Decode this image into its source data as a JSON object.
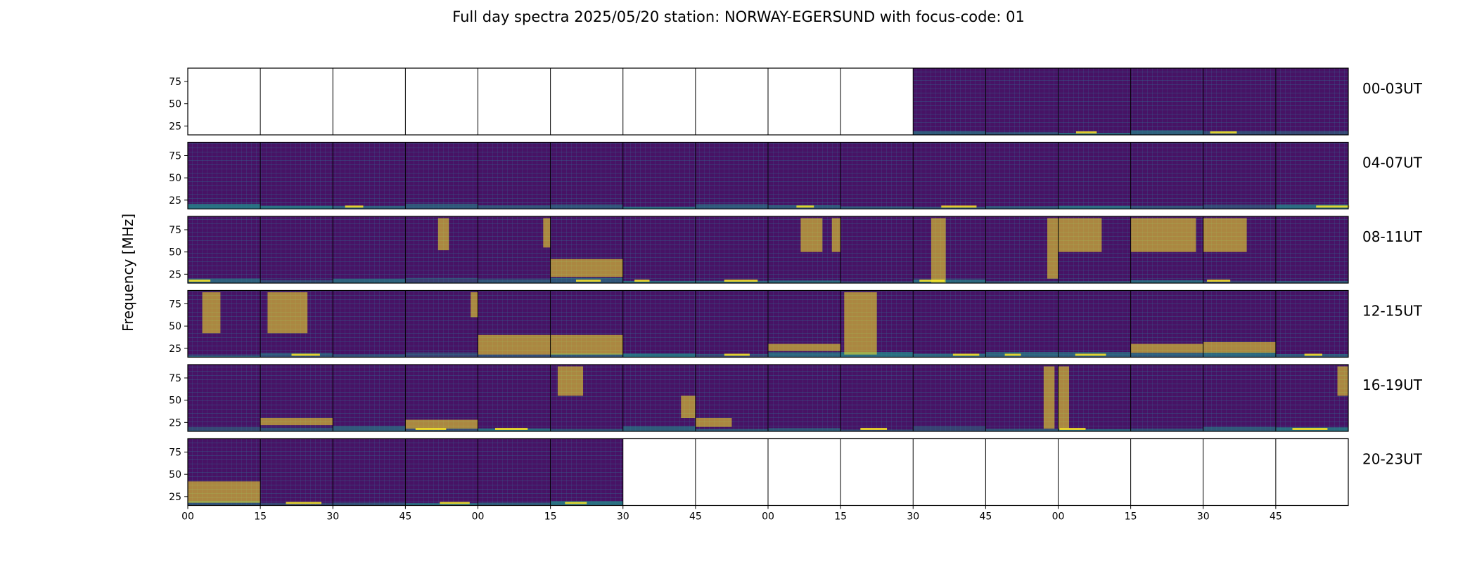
{
  "chart_data": {
    "type": "heatmap",
    "title": "Full day spectra 2025/05/20 station: NORWAY-EGERSUND with focus-code: 01",
    "ylabel": "Frequency [MHz]",
    "ylim": [
      15,
      90
    ],
    "y_ticks": [
      "25",
      "50",
      "75"
    ],
    "y_tick_values": [
      25,
      50,
      75
    ],
    "x_ticks": [
      "00",
      "15",
      "30",
      "45",
      "00",
      "15",
      "30",
      "45",
      "00",
      "15",
      "30",
      "45",
      "00",
      "15",
      "30",
      "45"
    ],
    "colormap": "viridis",
    "rows": [
      {
        "label": "00-03UT",
        "available": [
          0,
          0,
          0,
          0,
          0,
          0,
          0,
          0,
          0,
          0,
          1,
          1,
          1,
          1,
          1,
          1
        ]
      },
      {
        "label": "04-07UT",
        "available": [
          1,
          1,
          1,
          1,
          1,
          1,
          1,
          1,
          1,
          1,
          1,
          1,
          1,
          1,
          1,
          1
        ]
      },
      {
        "label": "08-11UT",
        "available": [
          1,
          1,
          1,
          1,
          1,
          1,
          1,
          1,
          1,
          1,
          1,
          1,
          1,
          1,
          1,
          1
        ]
      },
      {
        "label": "12-15UT",
        "available": [
          1,
          1,
          1,
          1,
          1,
          1,
          1,
          1,
          1,
          1,
          1,
          1,
          1,
          1,
          1,
          1
        ]
      },
      {
        "label": "16-19UT",
        "available": [
          1,
          1,
          1,
          1,
          1,
          1,
          1,
          1,
          1,
          1,
          1,
          1,
          1,
          1,
          1,
          1
        ]
      },
      {
        "label": "20-23UT",
        "available": [
          1,
          1,
          1,
          1,
          1,
          1,
          0,
          0,
          0,
          0,
          0,
          0,
          0,
          0,
          0,
          0
        ]
      }
    ]
  },
  "colors": {
    "background": "#3b0f70",
    "panel_base": "#471365",
    "low": "#3e4a89",
    "mid": "#21918c",
    "high": "#fde725",
    "axis": "#000000"
  }
}
